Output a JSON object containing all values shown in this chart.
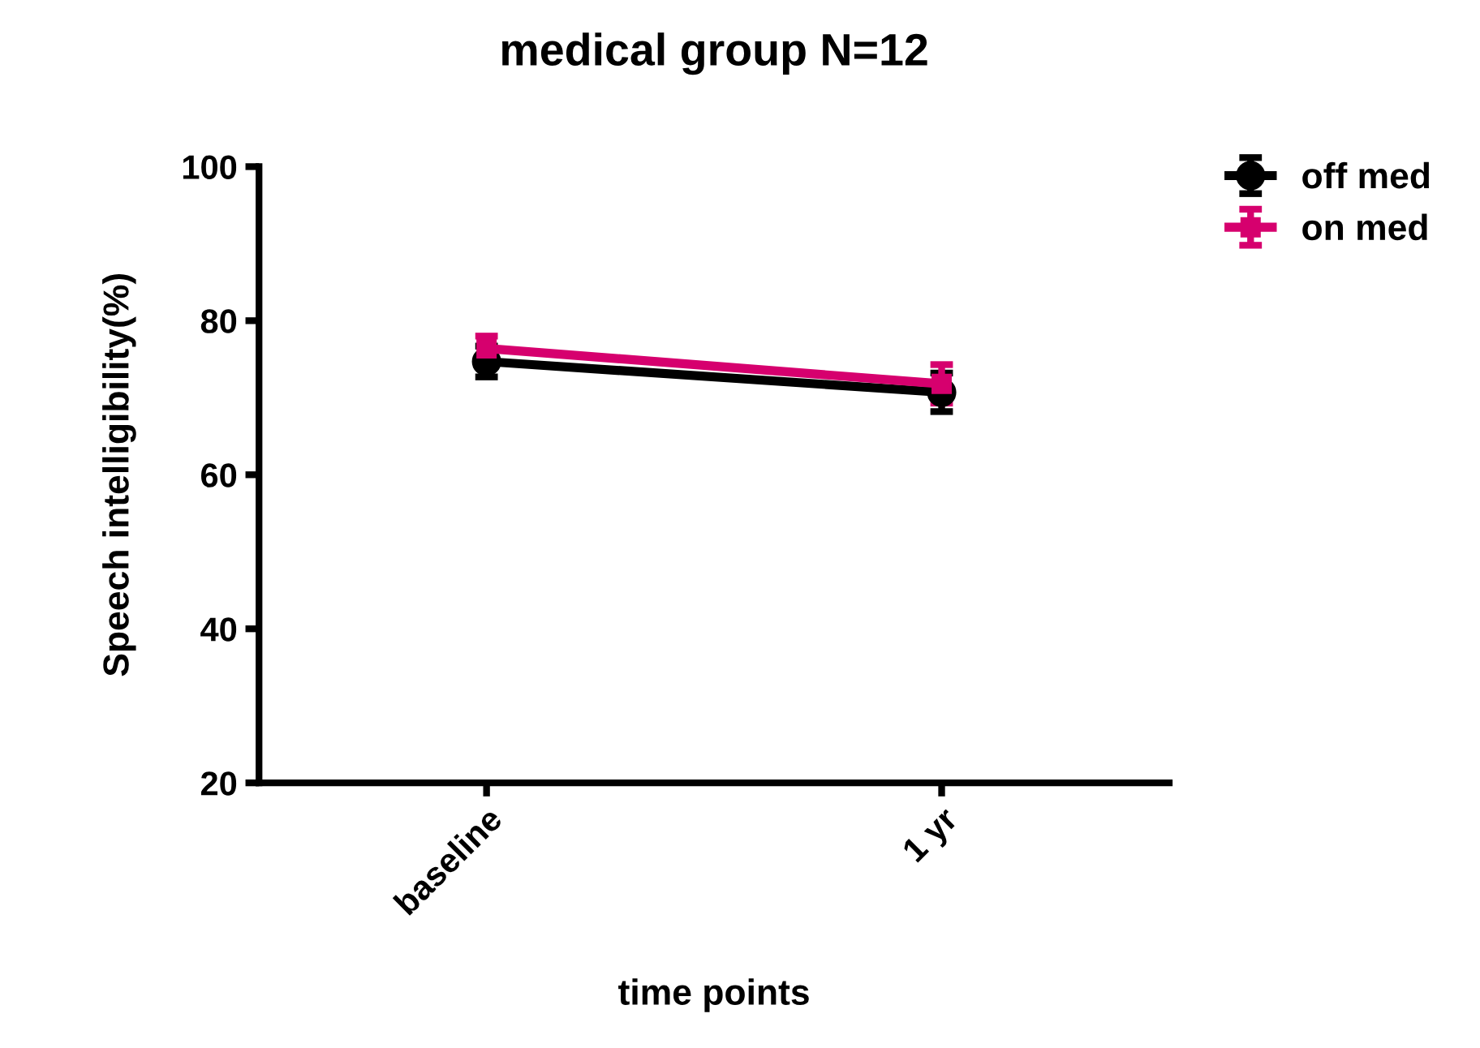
{
  "chart_data": {
    "type": "line",
    "title": "medical group N=12",
    "xlabel": "time points",
    "ylabel": "Speech intelligibility(%)",
    "categories": [
      "baseline",
      "1 yr"
    ],
    "series": [
      {
        "name": "off med",
        "color": "#000000",
        "marker": "circle",
        "values": [
          74.7,
          70.7
        ],
        "errors": [
          2.0,
          2.5
        ]
      },
      {
        "name": "on med",
        "color": "#d6006e",
        "marker": "square",
        "values": [
          76.4,
          71.8
        ],
        "errors": [
          1.6,
          2.5
        ]
      }
    ],
    "ylim": [
      20,
      100
    ],
    "yticks": [
      20,
      40,
      60,
      80,
      100
    ],
    "grid": false,
    "legend": "top right",
    "line_style": "solid"
  }
}
